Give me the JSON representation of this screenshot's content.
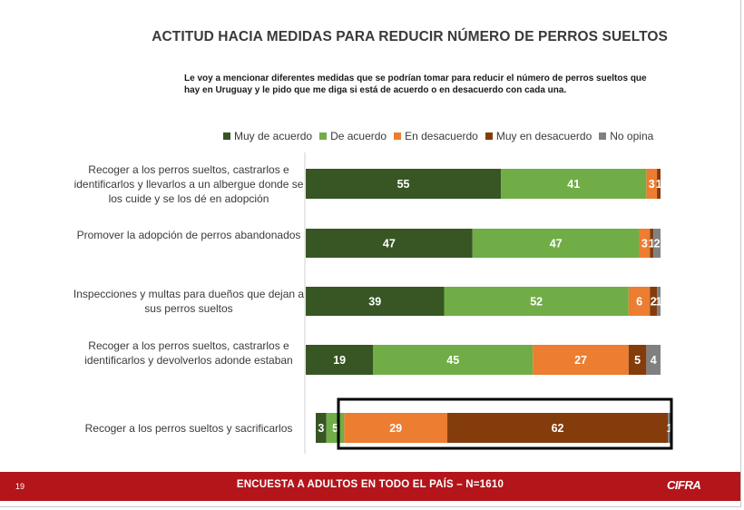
{
  "slide": {
    "title": "ACTITUD HACIA MEDIDAS PARA REDUCIR NÚMERO DE PERROS SUELTOS",
    "subtitle": "Le voy a mencionar diferentes medidas que se podrían tomar para reducir el número de perros sueltos que hay en Uruguay y le pido que me diga si está de acuerdo o en desacuerdo con cada una.",
    "footer": {
      "page_number": "19",
      "text": "ENCUESTA A ADULTOS EN TODO EL PAÍS – N=1610",
      "logo": "CIFRA"
    }
  },
  "chart_data": {
    "type": "bar",
    "orientation": "horizontal",
    "stacked": true,
    "title": "",
    "legend_position": "top",
    "categories": [
      "Recoger a los perros sueltos, castrarlos e identificarlos y llevarlos a un albergue donde se los cuide y se los dé en adopción",
      "Promover la adopción de perros abandonados",
      "Inspecciones y multas para dueños que dejan a sus perros sueltos",
      "Recoger a los perros sueltos, castrarlos e identificarlos y devolverlos adonde estaban",
      "Recoger a los perros sueltos y sacrificarlos"
    ],
    "series": [
      {
        "name": "Muy de acuerdo",
        "color": "#375623",
        "values": [
          55,
          47,
          39,
          19,
          3
        ]
      },
      {
        "name": "De acuerdo",
        "color": "#70ad47",
        "values": [
          41,
          47,
          52,
          45,
          5
        ]
      },
      {
        "name": "En desacuerdo",
        "color": "#ed7d31",
        "values": [
          3,
          3,
          6,
          27,
          29
        ]
      },
      {
        "name": "Muy en desacuerdo",
        "color": "#843c0c",
        "values": [
          1,
          1,
          2,
          5,
          62
        ]
      },
      {
        "name": "No opina",
        "color": "#808080",
        "values": [
          0,
          2,
          1,
          4,
          1
        ]
      }
    ],
    "data_labels": [
      [
        "55",
        "41",
        "3",
        "1",
        ""
      ],
      [
        "47",
        "47",
        "3",
        "1",
        "2"
      ],
      [
        "39",
        "52",
        "6",
        "2",
        "1"
      ],
      [
        "19",
        "45",
        "27",
        "5",
        "4"
      ],
      [
        "3",
        "5",
        "29",
        "62",
        "1"
      ]
    ],
    "highlighted_bar": 4
  }
}
